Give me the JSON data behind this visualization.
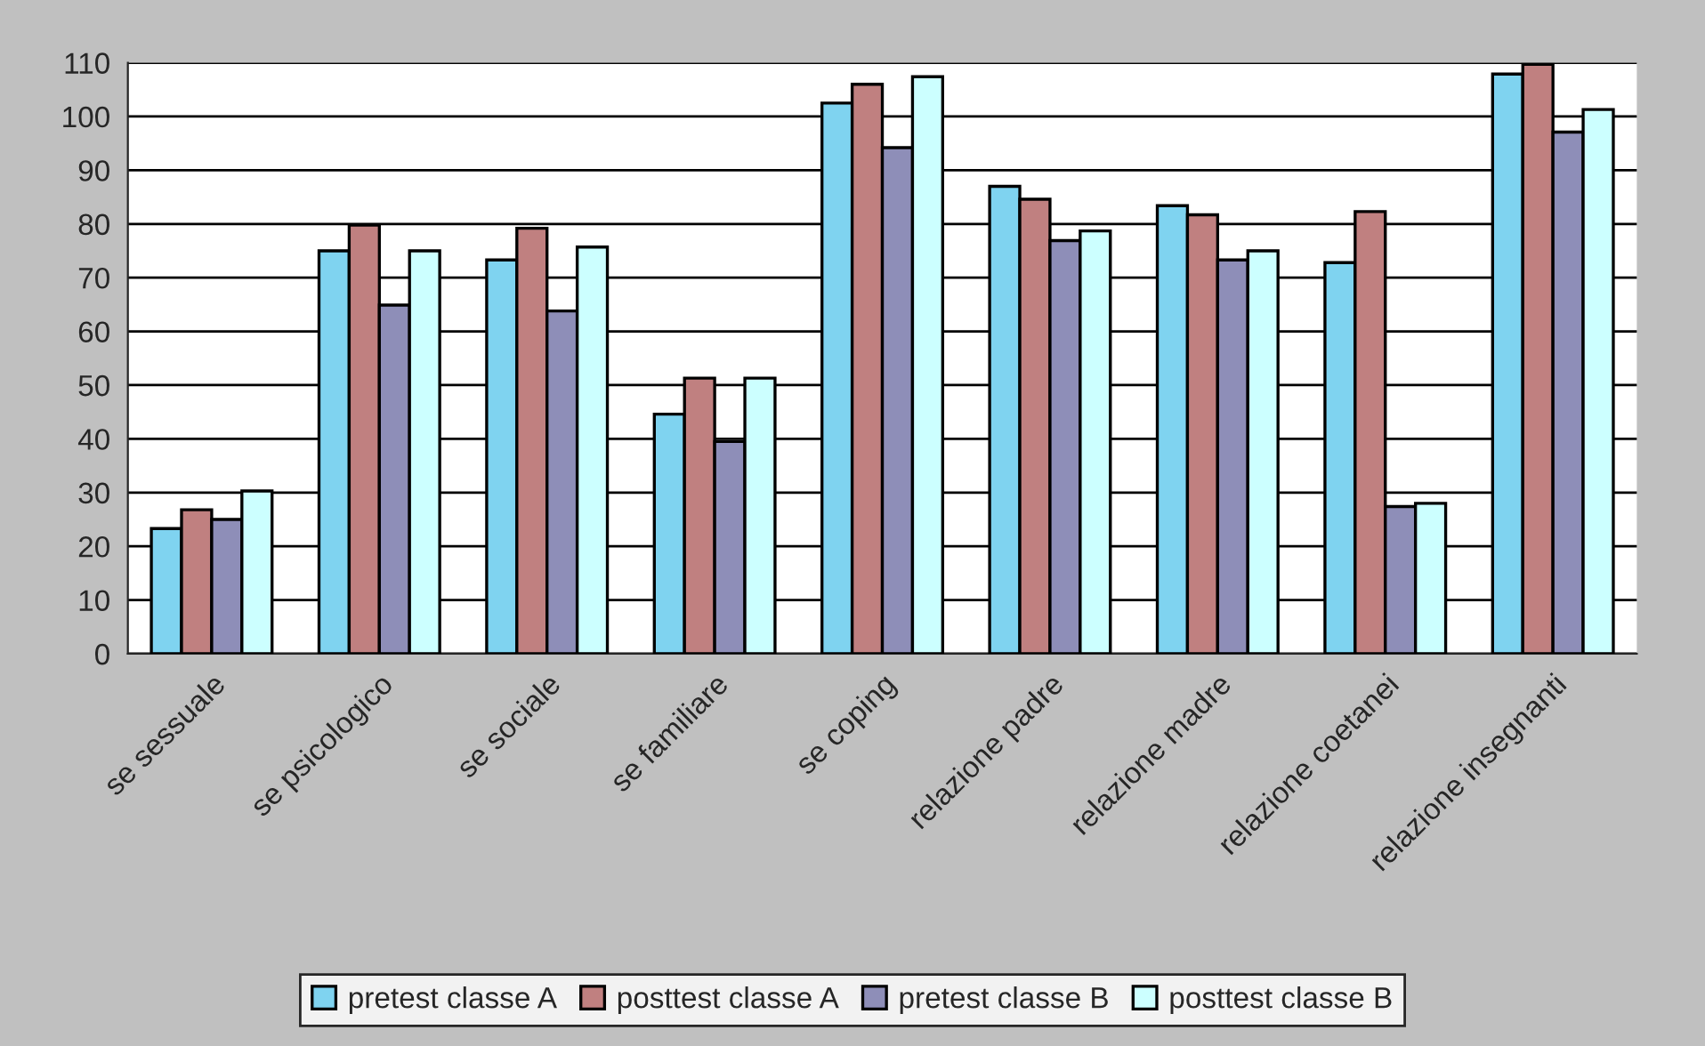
{
  "chart_data": {
    "type": "bar",
    "categories": [
      "se sessuale",
      "se psicologico",
      "se sociale",
      "se familiare",
      "se coping",
      "relazione padre",
      "relazione madre",
      "relazione coetanei",
      "relazione insegnanti"
    ],
    "series": [
      {
        "name": "pretest classe A",
        "color": "#7fd3f0",
        "values": [
          23.3,
          75.0,
          73.3,
          44.6,
          102.5,
          87.0,
          83.4,
          72.8,
          107.9
        ]
      },
      {
        "name": "posttest classe A",
        "color": "#c08080",
        "values": [
          26.8,
          79.8,
          79.2,
          51.3,
          106.0,
          84.6,
          81.7,
          82.3,
          109.7
        ]
      },
      {
        "name": "pretest classe B",
        "color": "#8e8eb8",
        "values": [
          25.0,
          64.9,
          63.8,
          39.5,
          94.2,
          76.9,
          73.3,
          27.4,
          97.1
        ]
      },
      {
        "name": "posttest classe B",
        "color": "#ccffff",
        "values": [
          30.3,
          75.0,
          75.7,
          51.3,
          107.4,
          78.7,
          75.0,
          28.0,
          101.3
        ]
      }
    ],
    "ylim": [
      0,
      110
    ],
    "yticks": [
      0,
      10,
      20,
      30,
      40,
      50,
      60,
      70,
      80,
      90,
      100,
      110
    ],
    "grid": "y",
    "legend": "bottom"
  }
}
